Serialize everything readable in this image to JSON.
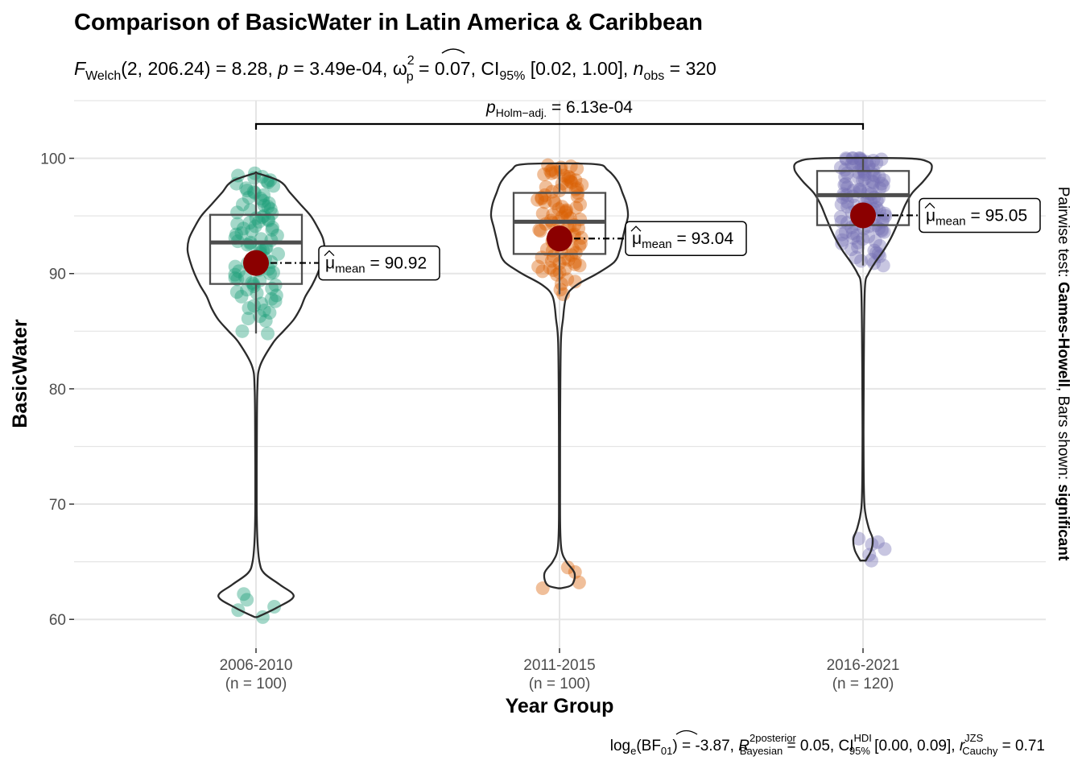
{
  "colors": {
    "group1": "#1B9E77",
    "group2": "#D95F02",
    "group3": "#7570B3",
    "mean_point": "#8B0000",
    "grid": "#E5E5E5"
  },
  "chart_data": {
    "type": "violin",
    "title": "Comparison of BasicWater in Latin America & Caribbean",
    "subtitle": {
      "text_a": "F",
      "text_a_sub": "Welch",
      "text_b": "(2, 206.24) = 8.28, ",
      "text_c": "p",
      "text_d": " = 3.49e-04, ",
      "text_e": "ω",
      "text_e_sup": "2",
      "text_e_sub": "p",
      "text_f": " = 0.07, CI",
      "text_f_sub": "95%",
      "text_g": " [0.02, 1.00], ",
      "text_h": "n",
      "text_h_sub": "obs",
      "text_i": " = 320"
    },
    "xlabel": "Year Group",
    "ylabel": "BasicWater",
    "ylim": [
      57.5,
      105
    ],
    "yticks": [
      60,
      70,
      80,
      90,
      100
    ],
    "right_label": {
      "a": "Pairwise test: ",
      "b": "Games-Howell",
      "c": ", Bars shown: ",
      "d": "significant"
    },
    "caption": {
      "a": "log",
      "a_sub": "e",
      "b": "(BF",
      "b_sub": "01",
      "c": ") = -3.87, ",
      "d": "R",
      "d_sup": "2",
      "d_sup2": "posterior",
      "d_sub": "Bayesian",
      "e": " = 0.05, CI",
      "e_sup": "HDI",
      "e_sub": "95%",
      "f": " [0.00, 0.09], ",
      "g": "r",
      "g_sup": "JZS",
      "g_sub": "Cauchy",
      "h": " = 0.71"
    },
    "comparison": {
      "from": 0,
      "to": 2,
      "label_p": "p",
      "label_sub": "Holm−adj.",
      "label_val": " = 6.13e-04"
    },
    "groups": [
      {
        "name": "2006-2010",
        "n_label": "(n = 100)",
        "mean": 90.92,
        "mean_label_mu": "μ",
        "mean_label_sub": "mean",
        "mean_label_val": " = 90.92",
        "box": {
          "q1": 89.1,
          "median": 92.7,
          "q3": 95.1,
          "whisker_low": 84.8,
          "whisker_high": 98.7
        },
        "violin": [
          [
            60.2,
            0.02
          ],
          [
            61,
            0.3
          ],
          [
            62,
            0.55
          ],
          [
            63,
            0.35
          ],
          [
            64,
            0.12
          ],
          [
            65,
            0.05
          ],
          [
            67,
            0.02
          ],
          [
            70,
            0.01
          ],
          [
            75,
            0.012
          ],
          [
            80,
            0.02
          ],
          [
            82,
            0.06
          ],
          [
            84,
            0.25
          ],
          [
            85,
            0.4
          ],
          [
            86,
            0.55
          ],
          [
            87,
            0.65
          ],
          [
            88,
            0.72
          ],
          [
            89,
            0.82
          ],
          [
            90,
            0.9
          ],
          [
            91,
            0.96
          ],
          [
            92,
            1.0
          ],
          [
            93,
            0.98
          ],
          [
            94,
            0.9
          ],
          [
            95,
            0.8
          ],
          [
            96,
            0.65
          ],
          [
            97,
            0.5
          ],
          [
            98,
            0.35
          ],
          [
            98.7,
            0.02
          ]
        ],
        "points": [
          60.2,
          61.1,
          61.7,
          60.8,
          62.2,
          84.8,
          85.0,
          86.1,
          86.6,
          87.0,
          87.4,
          87.8,
          88.1,
          88.3,
          88.6,
          88.9,
          89.1,
          89.4,
          89.7,
          90.0,
          90.2,
          90.4,
          90.6,
          90.9,
          91.2,
          91.5,
          91.8,
          92.0,
          92.3,
          92.6,
          92.9,
          93.1,
          93.4,
          93.7,
          94.0,
          94.3,
          94.6,
          94.9,
          95.2,
          95.5,
          95.8,
          96.1,
          96.5,
          96.8,
          97.2,
          97.6,
          97.9,
          98.1,
          98.4,
          98.7,
          98.0,
          97.4,
          96.0,
          94.8,
          93.9,
          92.7,
          91.4,
          90.1,
          89.2,
          88.0,
          86.8,
          85.9,
          87.6,
          89.9,
          92.2,
          93.5,
          94.4,
          95.6,
          96.6,
          97.8,
          98.3,
          91.0,
          90.5,
          89.6,
          88.4,
          92.5,
          93.3,
          94.1,
          95.0,
          95.9,
          97.0,
          98.5,
          86.3,
          87.2,
          91.7,
          92.8,
          93.8,
          94.7,
          90.8,
          89.5,
          88.7,
          93.0,
          94.5,
          96.3,
          97.1,
          91.3,
          92.1,
          90.3,
          89.0,
          95.3
        ],
        "jitter_seed": 11
      },
      {
        "name": "2011-2015",
        "n_label": "(n = 100)",
        "mean": 93.04,
        "mean_label_mu": "μ",
        "mean_label_sub": "mean",
        "mean_label_val": " = 93.04",
        "box": {
          "q1": 91.7,
          "median": 94.5,
          "q3": 97.0,
          "whisker_low": 88.2,
          "whisker_high": 99.4
        },
        "violin": [
          [
            62.7,
            0.02
          ],
          [
            63,
            0.18
          ],
          [
            64,
            0.22
          ],
          [
            65,
            0.1
          ],
          [
            66,
            0.03
          ],
          [
            68,
            0.01
          ],
          [
            72,
            0.008
          ],
          [
            78,
            0.01
          ],
          [
            84,
            0.02
          ],
          [
            86,
            0.05
          ],
          [
            88,
            0.1
          ],
          [
            89,
            0.25
          ],
          [
            90,
            0.55
          ],
          [
            91,
            0.8
          ],
          [
            92,
            0.88
          ],
          [
            93,
            0.92
          ],
          [
            94,
            0.96
          ],
          [
            95,
            1.0
          ],
          [
            96,
            0.98
          ],
          [
            97,
            0.92
          ],
          [
            98,
            0.85
          ],
          [
            99,
            0.7
          ],
          [
            99.5,
            0.5
          ]
        ],
        "points": [
          62.7,
          63.2,
          64.1,
          64.5,
          88.2,
          88.6,
          89.1,
          89.5,
          89.9,
          90.2,
          90.4,
          90.6,
          90.8,
          91.0,
          91.2,
          91.4,
          91.6,
          91.8,
          92.0,
          92.2,
          92.4,
          92.6,
          92.8,
          93.0,
          93.2,
          93.4,
          93.6,
          93.8,
          94.0,
          94.2,
          94.4,
          94.6,
          94.8,
          95.0,
          95.2,
          95.4,
          95.6,
          95.8,
          96.0,
          96.2,
          96.4,
          96.6,
          96.8,
          97.0,
          97.2,
          97.4,
          97.6,
          97.8,
          98.0,
          98.2,
          98.4,
          98.6,
          98.8,
          99.0,
          99.2,
          99.4,
          99.1,
          98.9,
          98.5,
          97.9,
          97.3,
          96.7,
          96.1,
          95.5,
          94.9,
          94.3,
          93.7,
          93.1,
          92.5,
          91.9,
          91.3,
          90.7,
          90.1,
          89.3,
          98.3,
          97.1,
          96.5,
          95.1,
          94.5,
          93.3,
          92.1,
          91.1,
          90.3,
          99.3,
          98.7,
          97.5,
          96.3,
          95.7,
          94.1,
          93.5,
          92.7,
          91.5,
          90.9,
          90.5,
          99.0,
          98.1,
          97.7,
          95.3,
          94.7,
          93.9
        ],
        "jitter_seed": 23
      },
      {
        "name": "2016-2021",
        "n_label": "(n = 120)",
        "mean": 95.05,
        "mean_label_mu": "μ",
        "mean_label_sub": "mean",
        "mean_label_val": " = 95.05",
        "box": {
          "q1": 94.2,
          "median": 96.8,
          "q3": 98.9,
          "whisker_low": 90.7,
          "whisker_high": 100.0
        },
        "violin": [
          [
            65.1,
            0.04
          ],
          [
            66,
            0.12
          ],
          [
            67,
            0.14
          ],
          [
            68,
            0.08
          ],
          [
            70,
            0.02
          ],
          [
            75,
            0.008
          ],
          [
            80,
            0.01
          ],
          [
            85,
            0.015
          ],
          [
            89,
            0.03
          ],
          [
            90,
            0.08
          ],
          [
            91,
            0.18
          ],
          [
            92,
            0.3
          ],
          [
            93,
            0.4
          ],
          [
            94,
            0.48
          ],
          [
            95,
            0.55
          ],
          [
            96,
            0.62
          ],
          [
            97,
            0.72
          ],
          [
            98,
            0.88
          ],
          [
            99,
            1.0
          ],
          [
            99.7,
            0.95
          ],
          [
            100,
            0.6
          ]
        ],
        "points": [
          65.1,
          65.6,
          66.1,
          66.5,
          66.7,
          67.0,
          90.7,
          90.9,
          91.2,
          91.5,
          91.8,
          92.1,
          92.4,
          92.7,
          93.0,
          93.3,
          93.6,
          93.9,
          94.2,
          94.5,
          94.8,
          95.1,
          95.4,
          95.7,
          96.0,
          96.3,
          96.6,
          96.9,
          97.2,
          97.5,
          97.8,
          98.1,
          98.4,
          98.7,
          99.0,
          99.3,
          99.6,
          99.9,
          100.0,
          100.0,
          99.8,
          99.5,
          99.2,
          98.9,
          98.6,
          98.3,
          98.0,
          97.7,
          97.4,
          97.1,
          96.8,
          96.5,
          96.2,
          95.9,
          95.6,
          95.3,
          95.0,
          94.7,
          94.4,
          94.1,
          93.8,
          93.5,
          93.2,
          92.9,
          92.6,
          92.3,
          92.0,
          91.7,
          91.4,
          91.1,
          100.0,
          99.9,
          99.7,
          99.4,
          99.1,
          98.8,
          98.5,
          98.2,
          97.9,
          97.6,
          97.3,
          97.0,
          96.7,
          96.4,
          96.1,
          95.8,
          95.5,
          95.2,
          94.9,
          94.6,
          94.3,
          94.0,
          93.7,
          93.4,
          93.1,
          99.6,
          99.3,
          98.6,
          97.5,
          96.9,
          100.0,
          99.8,
          99.5,
          98.8,
          98.1,
          97.2,
          96.3,
          95.4,
          94.5,
          93.6,
          100.0,
          99.9,
          99.0,
          98.4,
          97.8,
          96.6,
          95.7,
          94.8,
          93.9,
          92.8
        ],
        "jitter_seed": 37
      }
    ]
  }
}
